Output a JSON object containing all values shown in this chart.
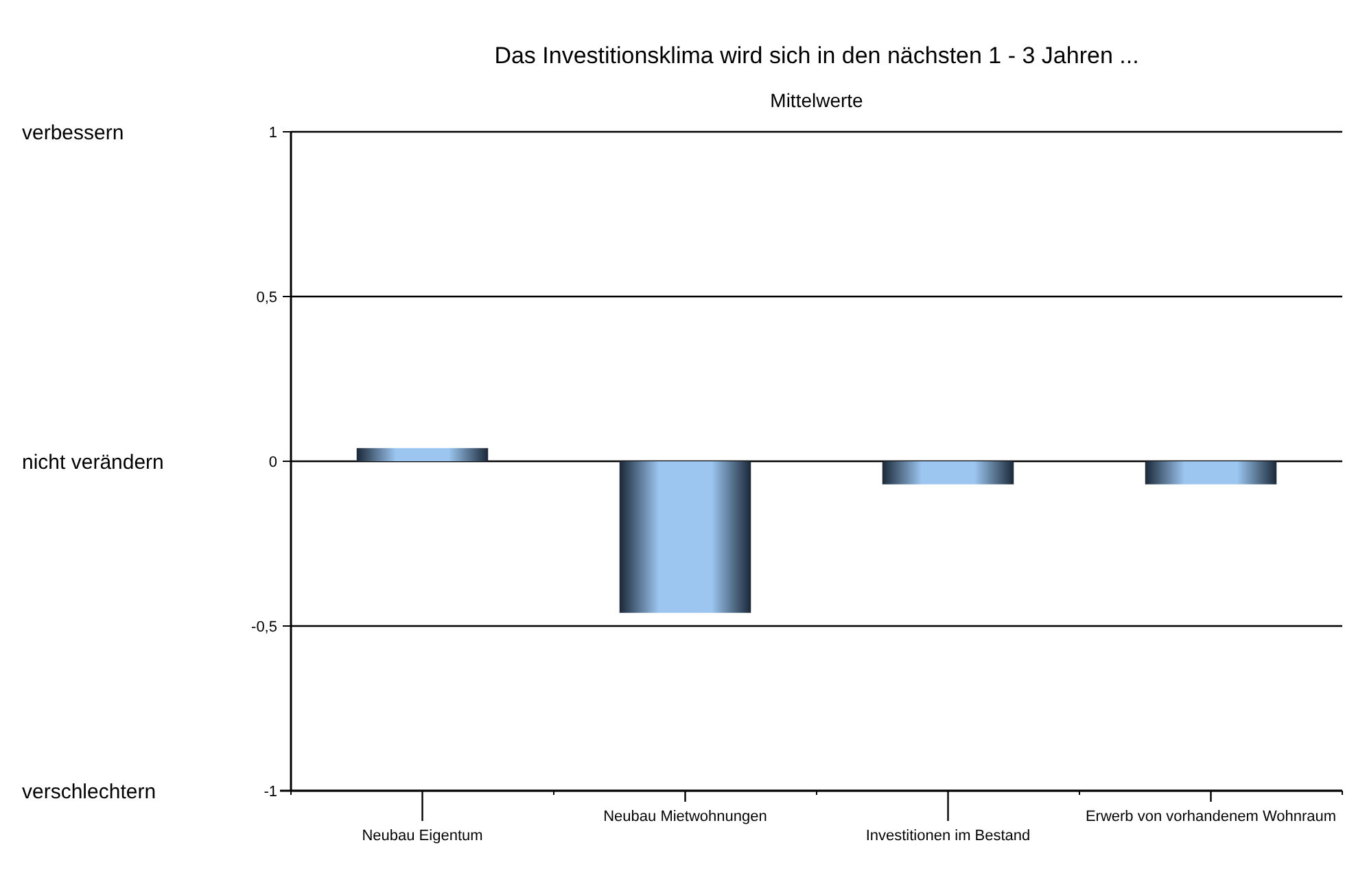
{
  "chart_data": {
    "type": "bar",
    "title": "Das Investitionsklima wird sich in den nächsten 1 - 3 Jahren ...",
    "subtitle": "Mittelwerte",
    "categories": [
      "Neubau Eigentum",
      "Neubau Mietwohnungen",
      "Investitionen im Bestand",
      "Erwerb von vorhandenem Wohnraum"
    ],
    "values": [
      0.04,
      -0.46,
      -0.07,
      -0.07
    ],
    "color": "#9cc6f0",
    "ylim": [
      -1,
      1
    ],
    "yticks": [
      {
        "value": -1,
        "label": "-1"
      },
      {
        "value": -0.5,
        "label": "-0,5"
      },
      {
        "value": 0,
        "label": "0"
      },
      {
        "value": 0.5,
        "label": "0,5"
      },
      {
        "value": 1,
        "label": "1"
      }
    ],
    "grid": "y",
    "annotations": [
      "verbessern",
      "nicht verändern",
      "verschlechtern"
    ]
  }
}
